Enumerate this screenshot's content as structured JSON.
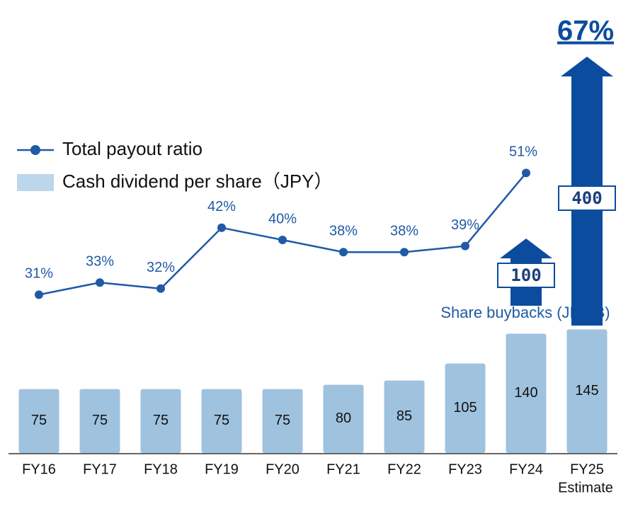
{
  "chart_data": {
    "type": "bar",
    "categories": [
      "FY16",
      "FY17",
      "FY18",
      "FY19",
      "FY20",
      "FY21",
      "FY22",
      "FY23",
      "FY24",
      "FY25"
    ],
    "series": [
      {
        "name": "Total payout ratio",
        "type": "line",
        "axis": "y2",
        "color": "#1f5aa6",
        "values": [
          31,
          33,
          32,
          42,
          40,
          38,
          38,
          39,
          51,
          null
        ],
        "value_labels": [
          "31%",
          "33%",
          "32%",
          "42%",
          "40%",
          "38%",
          "38%",
          "39%",
          "51%",
          null
        ]
      },
      {
        "name": "Cash dividend per share（JPY）",
        "type": "bar",
        "color": "#9fc2df",
        "values": [
          75,
          75,
          75,
          75,
          75,
          80,
          85,
          105,
          140,
          145
        ]
      }
    ],
    "buybacks": {
      "name": "Share buybacks (JPY B)",
      "color": "#0b4c9e",
      "values": [
        null,
        null,
        null,
        null,
        null,
        null,
        null,
        null,
        100,
        400
      ]
    },
    "annotations": [
      "67%",
      "Estimate"
    ],
    "ylim": [
      0,
      500
    ],
    "y2lim": [
      5,
      75
    ]
  }
}
